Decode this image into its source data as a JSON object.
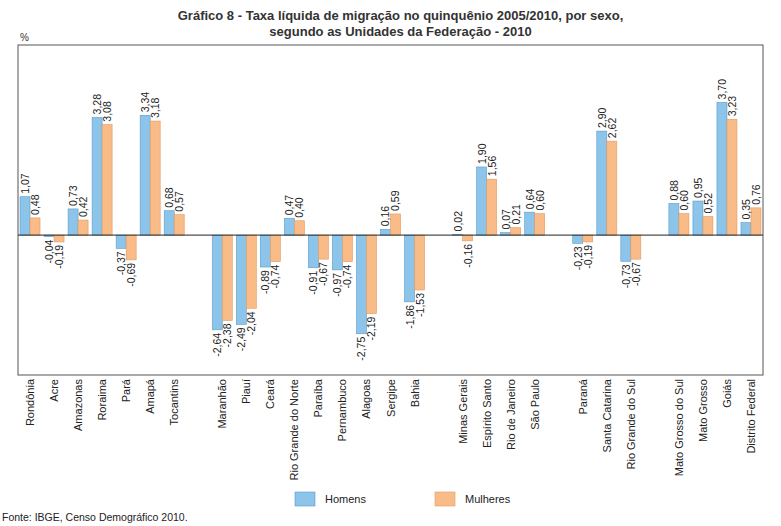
{
  "chart_data": {
    "type": "bar",
    "title": "Gráfico 8 - Taxa líquida de migração no quinquênio 2005/2010, por sexo,",
    "subtitle": "segundo as Unidades da Federação - 2010",
    "y_label": "%",
    "source": "Fonte: IBGE, Censo Demográfico 2010.",
    "categories": [
      "Rondônia",
      "Acre",
      "Amazonas",
      "Roraima",
      "Pará",
      "Amapá",
      "Tocantins",
      null,
      "Maranhão",
      "Piauí",
      "Ceará",
      "Rio Grande do Norte",
      "Paraíba",
      "Pernambuco",
      "Alagoas",
      "Sergipe",
      "Bahia",
      null,
      "Minas Gerais",
      "Espírito Santo",
      "Rio de Janeiro",
      "São Paulo",
      null,
      "Paraná",
      "Santa Catarina",
      "Rio Grande do Sul",
      null,
      "Mato Grosso do Sul",
      "Mato Grosso",
      "Goiás",
      "Distrito Federal"
    ],
    "series": [
      {
        "name": "Homens",
        "color": "#8cc4ea",
        "values": [
          1.07,
          -0.04,
          0.73,
          3.28,
          -0.37,
          3.34,
          0.68,
          null,
          -2.64,
          -2.49,
          -0.89,
          0.47,
          -0.91,
          -0.97,
          -2.75,
          0.16,
          -1.86,
          null,
          0.02,
          1.9,
          0.07,
          0.64,
          null,
          -0.23,
          2.9,
          -0.73,
          null,
          0.88,
          0.95,
          3.7,
          0.35
        ],
        "value_labels": [
          "1,07",
          "-0,04",
          "0,73",
          "3,28",
          "-0,37",
          "3,34",
          "0,68",
          null,
          "-2,64",
          "-2,49",
          "-0,89",
          "0,47",
          "-0,91",
          "-0,97",
          "-2,75",
          "0,16",
          "-1,86",
          null,
          "0,02",
          "1,90",
          "0,07",
          "0,64",
          null,
          "-0,23",
          "2,90",
          "-0,73",
          null,
          "0,88",
          "0,95",
          "3,70",
          "0,35"
        ]
      },
      {
        "name": "Mulheres",
        "color": "#f9bc88",
        "values": [
          0.48,
          -0.19,
          0.42,
          3.08,
          -0.69,
          3.18,
          0.57,
          null,
          -2.38,
          -2.04,
          -0.74,
          0.4,
          -0.67,
          -0.74,
          -2.19,
          0.59,
          -1.53,
          null,
          -0.16,
          1.56,
          0.21,
          0.6,
          null,
          -0.19,
          2.62,
          -0.67,
          null,
          0.6,
          0.52,
          3.23,
          0.76
        ],
        "value_labels": [
          "0,48",
          "-0,19",
          "0,42",
          "3,08",
          "-0,69",
          "3,18",
          "0,57",
          null,
          "-2,38",
          "-2,04",
          "-0,74",
          "0,40",
          "-0,67",
          "-0,74",
          "-2,19",
          "0,59",
          "-1,53",
          null,
          "-0,16",
          "1,56",
          "0,21",
          "0,60",
          null,
          "-0,19",
          "2,62",
          "-0,67",
          null,
          "0,60",
          "0,52",
          "3,23",
          "0,76"
        ]
      }
    ],
    "ylim": [
      -3.9,
      5.3
    ],
    "tick_labels": "x",
    "grid": false,
    "legend": "bottom",
    "data_labels": true
  }
}
